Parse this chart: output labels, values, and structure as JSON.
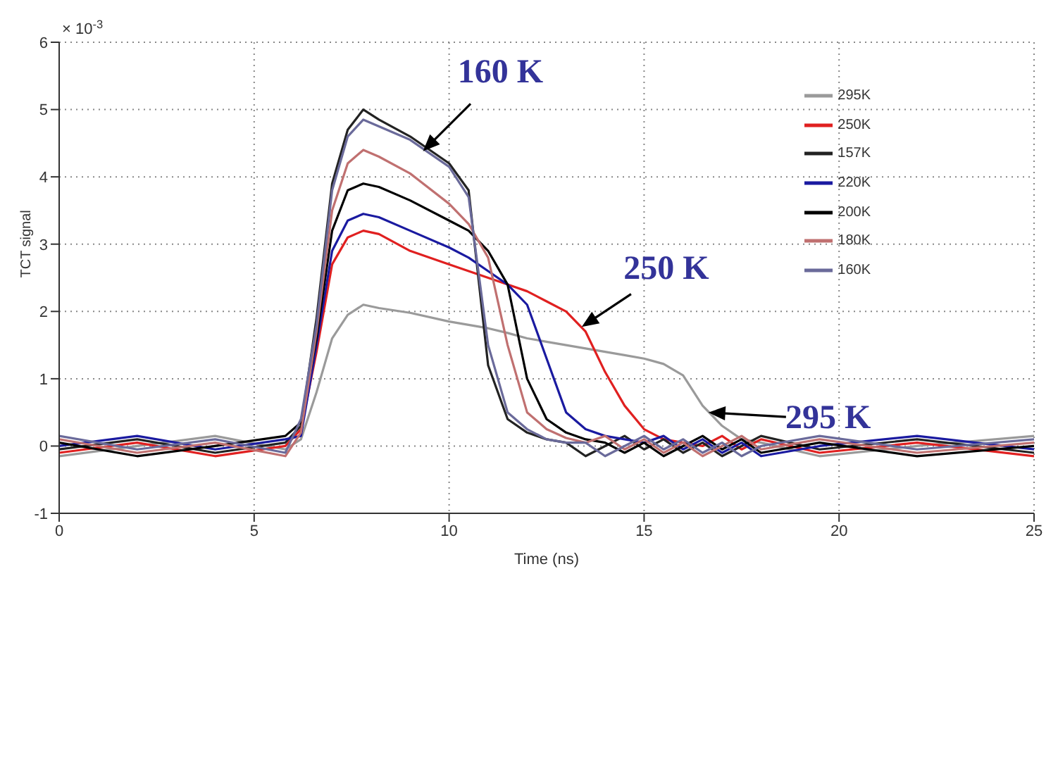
{
  "chart_data": {
    "type": "line",
    "xlabel": "Time (ns)",
    "ylabel": "TCT signal",
    "x": [
      0,
      2,
      4,
      5.8,
      6.2,
      6.6,
      7.0,
      7.4,
      7.8,
      8.2,
      9,
      10,
      10.5,
      11,
      11.5,
      12,
      12.5,
      13,
      13.5,
      14,
      14.5,
      15,
      15.5,
      16,
      16.5,
      17,
      17.5,
      18,
      19.5,
      22,
      25
    ],
    "series": [
      {
        "name": "295K",
        "color": "#9a9a9a",
        "values": [
          -0.15,
          0,
          0.15,
          -0.05,
          0.1,
          0.8,
          1.6,
          1.95,
          2.1,
          2.05,
          1.98,
          1.85,
          1.8,
          1.75,
          1.68,
          1.6,
          1.55,
          1.5,
          1.45,
          1.4,
          1.35,
          1.3,
          1.22,
          1.05,
          0.6,
          0.3,
          0.1,
          0.05,
          -0.15,
          0,
          0.15
        ]
      },
      {
        "name": "250K",
        "color": "#e02020",
        "values": [
          -0.1,
          0.05,
          -0.15,
          0,
          0.25,
          1.4,
          2.7,
          3.1,
          3.2,
          3.15,
          2.9,
          2.7,
          2.6,
          2.5,
          2.4,
          2.3,
          2.15,
          2.0,
          1.7,
          1.1,
          0.6,
          0.25,
          0.1,
          0.05,
          0,
          0.15,
          -0.05,
          0.1,
          -0.1,
          0.05,
          -0.15
        ]
      },
      {
        "name": "157K",
        "color": "#222222",
        "values": [
          -0.05,
          0.1,
          -0.1,
          0.05,
          0.3,
          1.9,
          3.9,
          4.7,
          5.0,
          4.85,
          4.6,
          4.2,
          3.8,
          1.2,
          0.4,
          0.2,
          0.1,
          0.05,
          -0.15,
          0,
          0.15,
          -0.05,
          0.1,
          -0.1,
          0.05,
          -0.15,
          0,
          0.15,
          -0.05,
          0.1,
          -0.1
        ]
      },
      {
        "name": "220K",
        "color": "#1a1aa0",
        "values": [
          0,
          0.15,
          -0.05,
          0.1,
          0.15,
          1.5,
          2.9,
          3.35,
          3.45,
          3.4,
          3.2,
          2.95,
          2.8,
          2.6,
          2.4,
          2.1,
          1.3,
          0.5,
          0.25,
          0.15,
          0.1,
          0.05,
          0.15,
          -0.05,
          0.1,
          -0.1,
          0.05,
          -0.15,
          0,
          0.15,
          -0.05
        ]
      },
      {
        "name": "200K",
        "color": "#000000",
        "values": [
          0.05,
          -0.15,
          0,
          0.15,
          0.35,
          1.6,
          3.2,
          3.8,
          3.9,
          3.85,
          3.65,
          3.35,
          3.2,
          2.9,
          2.4,
          1.0,
          0.4,
          0.2,
          0.1,
          0.05,
          -0.1,
          0.05,
          -0.15,
          0,
          0.15,
          -0.05,
          0.1,
          -0.1,
          0.05,
          -0.15,
          0
        ]
      },
      {
        "name": "180K",
        "color": "#c07070",
        "values": [
          0.1,
          -0.1,
          0.05,
          -0.15,
          0.2,
          1.7,
          3.5,
          4.2,
          4.4,
          4.3,
          4.05,
          3.6,
          3.3,
          2.8,
          1.5,
          0.5,
          0.25,
          0.12,
          0.05,
          0.15,
          -0.05,
          0.1,
          -0.1,
          0.05,
          -0.15,
          0,
          0.15,
          -0.05,
          0.1,
          -0.1,
          0.05
        ]
      },
      {
        "name": "160K",
        "color": "#6a6a9a",
        "values": [
          0.15,
          -0.05,
          0.1,
          -0.1,
          0.4,
          1.8,
          3.8,
          4.6,
          4.85,
          4.75,
          4.55,
          4.15,
          3.7,
          1.5,
          0.5,
          0.25,
          0.1,
          0.05,
          0.05,
          -0.15,
          0,
          0.15,
          -0.05,
          0.1,
          -0.1,
          0.05,
          -0.15,
          0,
          0.15,
          -0.05,
          0.1
        ]
      }
    ],
    "xlim": [
      0,
      25
    ],
    "xticks": [
      0,
      5,
      10,
      15,
      20,
      25
    ],
    "ylim": [
      -1,
      6
    ],
    "yticks": [
      -1,
      0,
      1,
      2,
      3,
      4,
      5,
      6
    ],
    "annotations": [
      "× 10$^{-3}$",
      {
        "text": "160 K",
        "x": 9.33,
        "y": 4.38
      },
      {
        "text": "250 K",
        "x": 13.4,
        "y": 1.77
      },
      {
        "text": "295 K",
        "x": 16.65,
        "y": 0.5
      }
    ],
    "grid": true,
    "legend": "top right",
    "line_style": "solid",
    "marker": "none"
  }
}
